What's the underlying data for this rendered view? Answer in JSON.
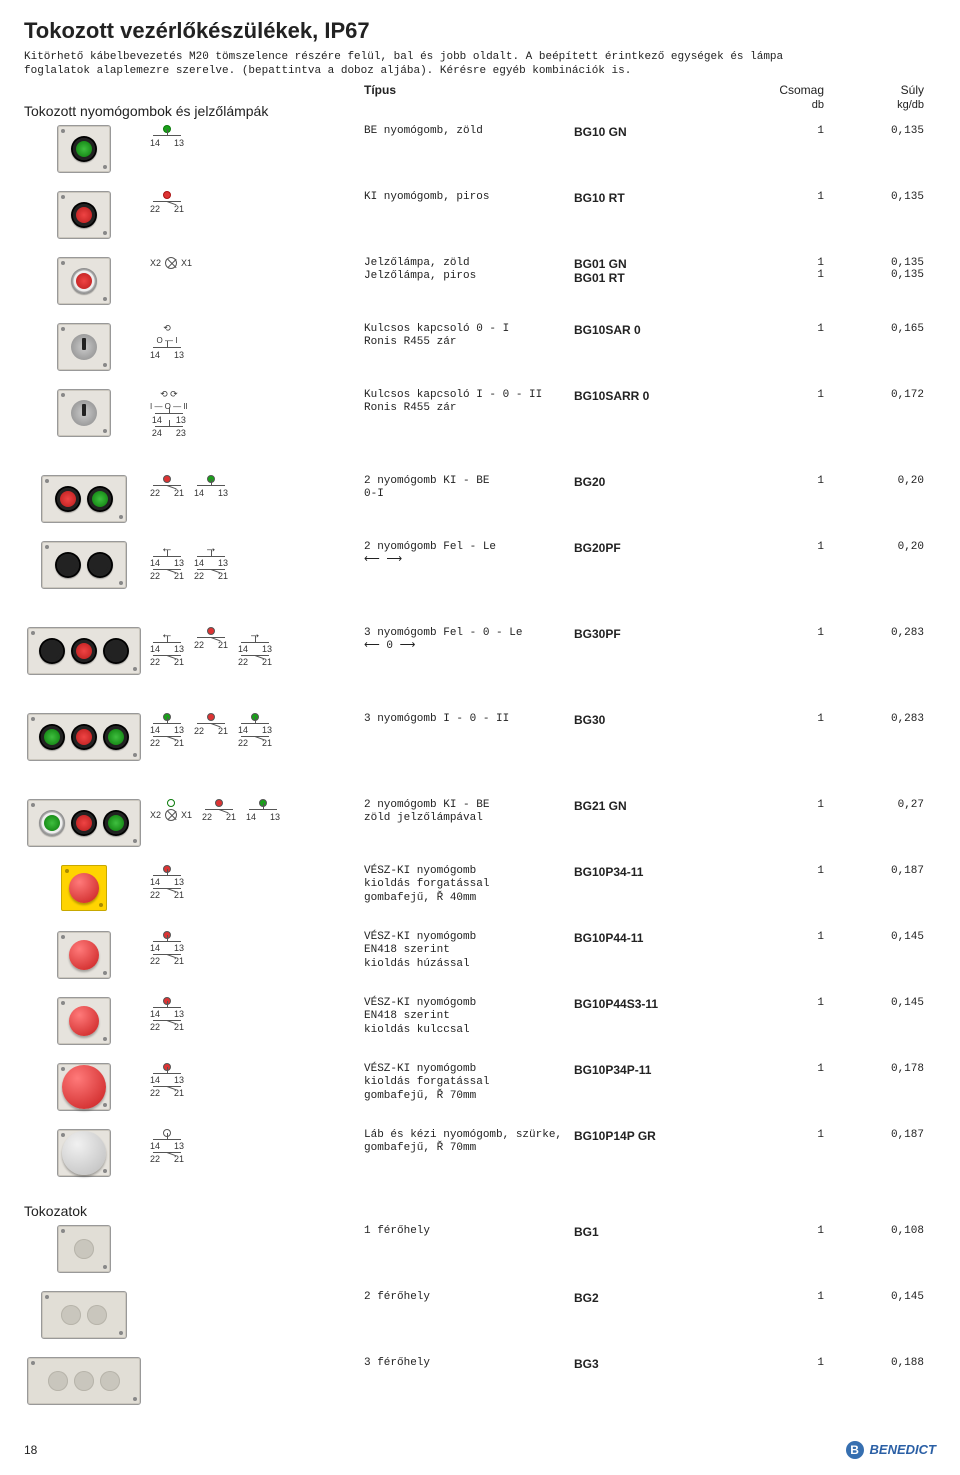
{
  "title": "Tokozott vezérlőkészülékek, IP67",
  "intro": "Kitörhető kábelbevezetés M20 tömszelence részére felül, bal és jobb oldalt. A beépített érintkező egységek és lámpa foglalatok alaplemezre szerelve. (bepattintva a doboz aljába). Kérésre egyéb kombinációk is.",
  "subhead": "Tokozott nyomógombok és jelzőlámpák",
  "head_type": "Típus",
  "head_pack": "Csomag",
  "head_pack2": "db",
  "head_weight": "Súly",
  "head_weight2": "kg/db",
  "rows": [
    {
      "desc": "BE nyomógomb, zöld",
      "type": "BG10 GN",
      "pack": "1",
      "weight": "0,135"
    },
    {
      "desc": "KI nyomógomb, piros",
      "type": "BG10 RT",
      "pack": "1",
      "weight": "0,135"
    },
    {
      "desc": "Jelzőlámpa, zöld\nJelzőlámpa, piros",
      "type": "BG01 GN\nBG01 RT",
      "pack": "1\n1",
      "weight": "0,135\n0,135"
    },
    {
      "desc": "Kulcsos kapcsoló 0 - I\nRonis R455 zár",
      "type": "BG10SAR 0",
      "pack": "1",
      "weight": "0,165"
    },
    {
      "desc": "Kulcsos kapcsoló I - 0 - II\nRonis R455 zár",
      "type": "BG10SARR 0",
      "pack": "1",
      "weight": "0,172"
    },
    {
      "desc": "2 nyomógomb KI - BE\n0-I",
      "type": "BG20",
      "pack": "1",
      "weight": "0,20"
    },
    {
      "desc": "2 nyomógomb Fel - Le\n⟵   ⟶",
      "type": "BG20PF",
      "pack": "1",
      "weight": "0,20"
    },
    {
      "desc": "3 nyomógomb Fel - 0 - Le\n⟵  0  ⟶",
      "type": "BG30PF",
      "pack": "1",
      "weight": "0,283"
    },
    {
      "desc": "3 nyomógomb I - 0 - II",
      "type": "BG30",
      "pack": "1",
      "weight": "0,283"
    },
    {
      "desc": "2 nyomógomb KI - BE\nzöld jelzőlámpával",
      "type": "BG21 GN",
      "pack": "1",
      "weight": "0,27"
    },
    {
      "desc": "VÉSZ-KI nyomógomb\nkioldás forgatással\ngombafejű, Ř 40mm",
      "type": "BG10P34-11",
      "pack": "1",
      "weight": "0,187"
    },
    {
      "desc": "VÉSZ-KI nyomógomb\nEN418 szerint\nkioldás húzással",
      "type": "BG10P44-11",
      "pack": "1",
      "weight": "0,145"
    },
    {
      "desc": "VÉSZ-KI nyomógomb\nEN418 szerint\nkioldás kulccsal",
      "type": "BG10P44S3-11",
      "pack": "1",
      "weight": "0,145"
    },
    {
      "desc": "VÉSZ-KI nyomógomb\nkioldás forgatással\ngombafejű, Ř 70mm",
      "type": "BG10P34P-11",
      "pack": "1",
      "weight": "0,178"
    },
    {
      "desc": "Láb és kézi nyomógomb, szürke,\ngombafejű, Ř 70mm",
      "type": "BG10P14P GR",
      "pack": "1",
      "weight": "0,187"
    }
  ],
  "enclosures_label": "Tokozatok",
  "enclosures": [
    {
      "desc": "1 férőhely",
      "type": "BG1",
      "pack": "1",
      "weight": "0,108"
    },
    {
      "desc": "2 férőhely",
      "type": "BG2",
      "pack": "1",
      "weight": "0,145"
    },
    {
      "desc": "3 férőhely",
      "type": "BG3",
      "pack": "1",
      "weight": "0,188"
    }
  ],
  "page_number": "18",
  "brand": "BENEDICT"
}
